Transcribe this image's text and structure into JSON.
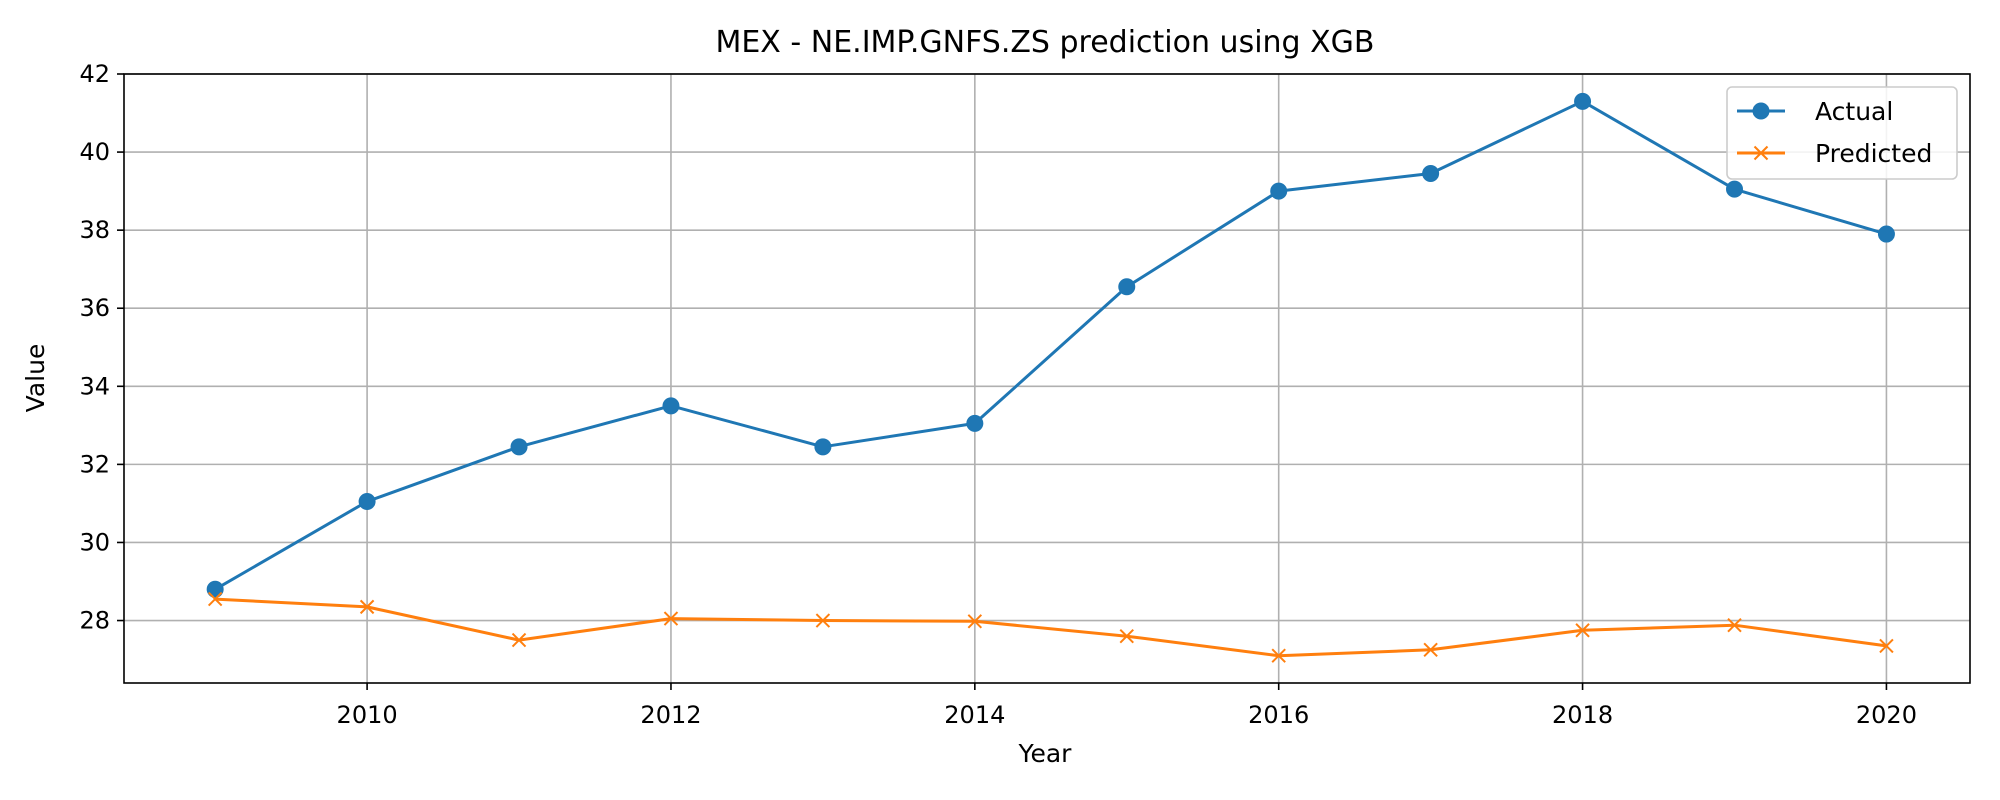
{
  "chart_data": {
    "type": "line",
    "title": "MEX - NE.IMP.GNFS.ZS prediction using XGB",
    "xlabel": "Year",
    "ylabel": "Value",
    "x": [
      2009,
      2010,
      2011,
      2012,
      2013,
      2014,
      2015,
      2016,
      2017,
      2018,
      2019,
      2020
    ],
    "xlim": [
      2008.4,
      2020.55
    ],
    "ylim": [
      26.4,
      42
    ],
    "x_ticks": [
      2010,
      2012,
      2014,
      2016,
      2018,
      2020
    ],
    "y_ticks": [
      28,
      30,
      32,
      34,
      36,
      38,
      40,
      42
    ],
    "grid": true,
    "legend_position": "top-right",
    "series": [
      {
        "name": "Actual",
        "color": "#1f77b4",
        "marker": "circle",
        "values": [
          28.8,
          31.05,
          32.45,
          33.5,
          32.45,
          33.05,
          36.55,
          39.0,
          39.45,
          41.3,
          39.05,
          37.9
        ]
      },
      {
        "name": "Predicted",
        "color": "#ff7f0e",
        "marker": "x",
        "values": [
          28.55,
          28.35,
          27.5,
          28.05,
          28.0,
          27.98,
          27.6,
          27.1,
          27.25,
          27.75,
          27.88,
          27.35
        ]
      }
    ]
  }
}
